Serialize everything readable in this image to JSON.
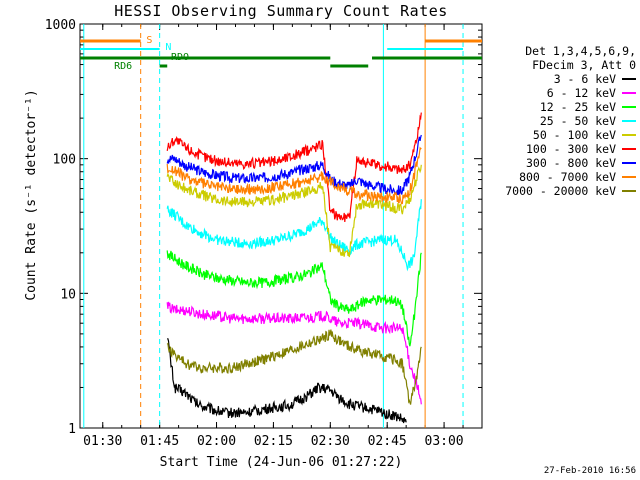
{
  "chart_data": {
    "type": "line",
    "title": "HESSI Observing Summary Count Rates",
    "xlabel": "Start Time (24-Jun-06 01:27:22)",
    "ylabel": "Count Rate (s⁻¹ detector⁻¹)",
    "y_scale": "log",
    "ylim": [
      1,
      1000
    ],
    "xlim_minutes": [
      -6,
      100
    ],
    "x_ticks": [
      {
        "minute": 0,
        "label": "01:30"
      },
      {
        "minute": 15,
        "label": "01:45"
      },
      {
        "minute": 30,
        "label": "02:00"
      },
      {
        "minute": 45,
        "label": "02:15"
      },
      {
        "minute": 60,
        "label": "02:30"
      },
      {
        "minute": 75,
        "label": "02:45"
      },
      {
        "minute": 90,
        "label": "03:00"
      }
    ],
    "y_ticks": [
      {
        "value": 1,
        "label": "1"
      },
      {
        "value": 10,
        "label": "10"
      },
      {
        "value": 100,
        "label": "100"
      },
      {
        "value": 1000,
        "label": "1000"
      }
    ],
    "legend": {
      "header": [
        "Det 1,3,4,5,6,9,",
        "FDecim 3, Att 0"
      ],
      "placement": "right"
    },
    "flags": {
      "saa_label": "S",
      "night_label": "N",
      "decim_label": "RDO",
      "rdo_label": "RD6"
    },
    "series": [
      {
        "name": "3 - 6 keV",
        "color": "#000000",
        "points": [
          [
            17,
            5
          ],
          [
            18,
            3
          ],
          [
            19,
            2
          ],
          [
            22,
            1.8
          ],
          [
            25,
            1.5
          ],
          [
            28,
            1.4
          ],
          [
            32,
            1.3
          ],
          [
            38,
            1.3
          ],
          [
            44,
            1.4
          ],
          [
            50,
            1.5
          ],
          [
            55,
            1.8
          ],
          [
            57,
            2
          ],
          [
            60,
            1.9
          ],
          [
            62,
            1.7
          ],
          [
            65,
            1.5
          ],
          [
            70,
            1.4
          ],
          [
            74,
            1.3
          ],
          [
            78,
            1.2
          ],
          [
            80,
            1.1
          ]
        ]
      },
      {
        "name": "6 - 12 keV",
        "color": "#ff00ff",
        "points": [
          [
            17,
            8
          ],
          [
            19,
            7.5
          ],
          [
            22,
            7.5
          ],
          [
            26,
            7
          ],
          [
            30,
            6.8
          ],
          [
            34,
            6.5
          ],
          [
            38,
            6.5
          ],
          [
            42,
            6.5
          ],
          [
            46,
            6.5
          ],
          [
            50,
            6.5
          ],
          [
            54,
            6.6
          ],
          [
            58,
            6.8
          ],
          [
            60,
            6.5
          ],
          [
            62,
            6
          ],
          [
            66,
            6
          ],
          [
            70,
            5.8
          ],
          [
            74,
            5.5
          ],
          [
            77,
            5.5
          ],
          [
            79,
            5.5
          ],
          [
            81,
            3
          ],
          [
            83,
            2
          ],
          [
            84,
            1.5
          ]
        ]
      },
      {
        "name": "12 - 25 keV",
        "color": "#00ff00",
        "points": [
          [
            17,
            20
          ],
          [
            19,
            18
          ],
          [
            22,
            16
          ],
          [
            26,
            14
          ],
          [
            30,
            13
          ],
          [
            34,
            12.5
          ],
          [
            38,
            12
          ],
          [
            42,
            12
          ],
          [
            46,
            12.5
          ],
          [
            50,
            13
          ],
          [
            54,
            14
          ],
          [
            58,
            16
          ],
          [
            60,
            9
          ],
          [
            62,
            8
          ],
          [
            65,
            7.5
          ],
          [
            70,
            9
          ],
          [
            74,
            9
          ],
          [
            77,
            9
          ],
          [
            79,
            8
          ],
          [
            81,
            4
          ],
          [
            82.5,
            8
          ],
          [
            84,
            20
          ]
        ]
      },
      {
        "name": "25 - 50 keV",
        "color": "#00ffff",
        "points": [
          [
            17,
            42
          ],
          [
            19,
            38
          ],
          [
            22,
            32
          ],
          [
            26,
            28
          ],
          [
            30,
            25
          ],
          [
            34,
            24
          ],
          [
            38,
            23.5
          ],
          [
            42,
            24
          ],
          [
            46,
            25
          ],
          [
            50,
            27
          ],
          [
            54,
            30
          ],
          [
            58,
            35
          ],
          [
            60,
            26
          ],
          [
            62,
            23
          ],
          [
            65,
            21
          ],
          [
            67,
            23
          ],
          [
            70,
            24
          ],
          [
            74,
            25
          ],
          [
            77,
            25
          ],
          [
            79,
            20
          ],
          [
            80.5,
            16
          ],
          [
            82,
            18
          ],
          [
            84,
            50
          ]
        ]
      },
      {
        "name": "50 - 100 keV",
        "color": "#cccc00",
        "points": [
          [
            17,
            75
          ],
          [
            19,
            66
          ],
          [
            22,
            60
          ],
          [
            26,
            54
          ],
          [
            30,
            50
          ],
          [
            34,
            48
          ],
          [
            38,
            47.5
          ],
          [
            42,
            48
          ],
          [
            46,
            50
          ],
          [
            50,
            53
          ],
          [
            54,
            57
          ],
          [
            58,
            63
          ],
          [
            60,
            22
          ],
          [
            62,
            21
          ],
          [
            65,
            20
          ],
          [
            67,
            45
          ],
          [
            70,
            47
          ],
          [
            74,
            45
          ],
          [
            77,
            43
          ],
          [
            79,
            42
          ],
          [
            81,
            50
          ],
          [
            84,
            90
          ]
        ]
      },
      {
        "name": "100 - 300 keV",
        "color": "#ff0000",
        "points": [
          [
            17,
            120
          ],
          [
            19,
            140
          ],
          [
            22,
            120
          ],
          [
            26,
            105
          ],
          [
            30,
            97
          ],
          [
            34,
            93
          ],
          [
            38,
            92
          ],
          [
            42,
            93
          ],
          [
            46,
            97
          ],
          [
            50,
            105
          ],
          [
            54,
            115
          ],
          [
            58,
            130
          ],
          [
            60,
            40
          ],
          [
            62,
            38
          ],
          [
            65,
            36
          ],
          [
            67,
            100
          ],
          [
            70,
            92
          ],
          [
            74,
            88
          ],
          [
            77,
            85
          ],
          [
            79,
            82
          ],
          [
            81,
            90
          ],
          [
            83,
            150
          ],
          [
            84,
            220
          ]
        ]
      },
      {
        "name": "300 - 800 keV",
        "color": "#0000ff",
        "points": [
          [
            17,
            100
          ],
          [
            19,
            100
          ],
          [
            22,
            88
          ],
          [
            26,
            80
          ],
          [
            30,
            75
          ],
          [
            34,
            72
          ],
          [
            38,
            71
          ],
          [
            42,
            72
          ],
          [
            46,
            75
          ],
          [
            50,
            79
          ],
          [
            54,
            85
          ],
          [
            58,
            90
          ],
          [
            60,
            70
          ],
          [
            62,
            66
          ],
          [
            65,
            62
          ],
          [
            67,
            70
          ],
          [
            70,
            64
          ],
          [
            74,
            60
          ],
          [
            77,
            58
          ],
          [
            79,
            58
          ],
          [
            81,
            75
          ],
          [
            84,
            150
          ]
        ]
      },
      {
        "name": "800 - 7000 keV",
        "color": "#ff8000",
        "points": [
          [
            17,
            85
          ],
          [
            19,
            82
          ],
          [
            22,
            72
          ],
          [
            26,
            66
          ],
          [
            30,
            62
          ],
          [
            34,
            60
          ],
          [
            38,
            59
          ],
          [
            42,
            60
          ],
          [
            46,
            62
          ],
          [
            50,
            65
          ],
          [
            54,
            69
          ],
          [
            58,
            74
          ],
          [
            60,
            68
          ],
          [
            62,
            63
          ],
          [
            65,
            58
          ],
          [
            67,
            55
          ],
          [
            70,
            53
          ],
          [
            74,
            52
          ],
          [
            77,
            52
          ],
          [
            79,
            50
          ],
          [
            81,
            58
          ],
          [
            84,
            120
          ]
        ]
      },
      {
        "name": "7000 - 20000 keV",
        "color": "#808000",
        "points": [
          [
            17,
            4
          ],
          [
            19,
            3.5
          ],
          [
            22,
            3
          ],
          [
            26,
            2.8
          ],
          [
            30,
            2.8
          ],
          [
            34,
            2.8
          ],
          [
            38,
            3
          ],
          [
            42,
            3.2
          ],
          [
            46,
            3.5
          ],
          [
            50,
            3.8
          ],
          [
            54,
            4.2
          ],
          [
            58,
            4.6
          ],
          [
            60,
            5
          ],
          [
            62,
            4.5
          ],
          [
            65,
            4
          ],
          [
            70,
            3.6
          ],
          [
            74,
            3.4
          ],
          [
            77,
            3.2
          ],
          [
            79,
            3
          ],
          [
            81,
            1.5
          ],
          [
            83,
            2.5
          ],
          [
            84,
            4
          ]
        ]
      }
    ]
  },
  "footer": {
    "date": "27-Feb-2010 16:56"
  }
}
